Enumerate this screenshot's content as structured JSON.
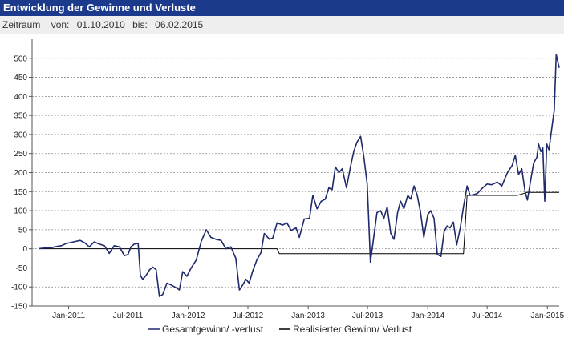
{
  "header": {
    "title": "Entwicklung der Gewinne und Verluste"
  },
  "range": {
    "label": "Zeitraum",
    "from_label": "von:",
    "from_value": "01.10.2010",
    "to_label": "bis:",
    "to_value": "06.02.2015"
  },
  "chart_data": {
    "type": "line",
    "title": "",
    "xlabel": "",
    "ylabel": "",
    "ylim": [
      -150,
      550
    ],
    "y_ticks": [
      -150,
      -100,
      -50,
      0,
      50,
      100,
      150,
      200,
      250,
      300,
      350,
      400,
      450,
      500
    ],
    "x_ticks": [
      {
        "label": "Jan-2011",
        "date": "2011-01-01"
      },
      {
        "label": "Jul-2011",
        "date": "2011-07-01"
      },
      {
        "label": "Jan-2012",
        "date": "2012-01-01"
      },
      {
        "label": "Jul-2012",
        "date": "2012-07-01"
      },
      {
        "label": "Jan-2013",
        "date": "2013-01-01"
      },
      {
        "label": "Jul-2013",
        "date": "2013-07-01"
      },
      {
        "label": "Jan-2014",
        "date": "2014-01-01"
      },
      {
        "label": "Jul-2014",
        "date": "2014-07-01"
      },
      {
        "label": "Jan-2015",
        "date": "2015-01-01"
      }
    ],
    "xlim": [
      "2010-10-01",
      "2015-02-06"
    ],
    "grid": "horizontal-dashed",
    "legend_position": "bottom-center",
    "series": [
      {
        "name": "Gesamtgewinn/ -verlust",
        "color": "#1f2a6b",
        "points": [
          [
            "2010-10-01",
            0
          ],
          [
            "2010-10-20",
            2
          ],
          [
            "2010-11-10",
            3
          ],
          [
            "2010-11-25",
            6
          ],
          [
            "2010-12-10",
            8
          ],
          [
            "2010-12-25",
            14
          ],
          [
            "2011-01-15",
            18
          ],
          [
            "2011-02-05",
            22
          ],
          [
            "2011-02-20",
            15
          ],
          [
            "2011-03-05",
            5
          ],
          [
            "2011-03-20",
            18
          ],
          [
            "2011-04-05",
            12
          ],
          [
            "2011-04-20",
            8
          ],
          [
            "2011-05-05",
            -12
          ],
          [
            "2011-05-20",
            8
          ],
          [
            "2011-06-05",
            5
          ],
          [
            "2011-06-20",
            -18
          ],
          [
            "2011-07-01",
            -15
          ],
          [
            "2011-07-10",
            5
          ],
          [
            "2011-07-20",
            12
          ],
          [
            "2011-08-01",
            14
          ],
          [
            "2011-08-08",
            -70
          ],
          [
            "2011-08-15",
            -80
          ],
          [
            "2011-08-25",
            -70
          ],
          [
            "2011-09-05",
            -55
          ],
          [
            "2011-09-15",
            -48
          ],
          [
            "2011-09-25",
            -55
          ],
          [
            "2011-10-05",
            -125
          ],
          [
            "2011-10-15",
            -120
          ],
          [
            "2011-10-28",
            -90
          ],
          [
            "2011-11-10",
            -95
          ],
          [
            "2011-11-25",
            -102
          ],
          [
            "2011-12-05",
            -108
          ],
          [
            "2011-12-15",
            -60
          ],
          [
            "2011-12-28",
            -72
          ],
          [
            "2012-01-10",
            -50
          ],
          [
            "2012-01-25",
            -30
          ],
          [
            "2012-02-10",
            20
          ],
          [
            "2012-02-25",
            50
          ],
          [
            "2012-03-10",
            30
          ],
          [
            "2012-03-25",
            25
          ],
          [
            "2012-04-10",
            22
          ],
          [
            "2012-04-25",
            0
          ],
          [
            "2012-05-10",
            5
          ],
          [
            "2012-05-25",
            -25
          ],
          [
            "2012-06-05",
            -108
          ],
          [
            "2012-06-15",
            -95
          ],
          [
            "2012-06-25",
            -80
          ],
          [
            "2012-07-05",
            -90
          ],
          [
            "2012-07-15",
            -60
          ],
          [
            "2012-07-28",
            -30
          ],
          [
            "2012-08-10",
            -10
          ],
          [
            "2012-08-20",
            40
          ],
          [
            "2012-09-05",
            25
          ],
          [
            "2012-09-15",
            28
          ],
          [
            "2012-09-28",
            68
          ],
          [
            "2012-10-15",
            62
          ],
          [
            "2012-10-28",
            68
          ],
          [
            "2012-11-10",
            48
          ],
          [
            "2012-11-25",
            55
          ],
          [
            "2012-12-05",
            30
          ],
          [
            "2012-12-20",
            78
          ],
          [
            "2013-01-05",
            80
          ],
          [
            "2013-01-15",
            140
          ],
          [
            "2013-01-28",
            105
          ],
          [
            "2013-02-10",
            125
          ],
          [
            "2013-02-22",
            130
          ],
          [
            "2013-03-05",
            160
          ],
          [
            "2013-03-15",
            155
          ],
          [
            "2013-03-25",
            215
          ],
          [
            "2013-04-05",
            200
          ],
          [
            "2013-04-15",
            210
          ],
          [
            "2013-04-28",
            160
          ],
          [
            "2013-05-10",
            215
          ],
          [
            "2013-05-20",
            255
          ],
          [
            "2013-05-30",
            280
          ],
          [
            "2013-06-10",
            295
          ],
          [
            "2013-06-20",
            240
          ],
          [
            "2013-06-30",
            170
          ],
          [
            "2013-07-05",
            70
          ],
          [
            "2013-07-10",
            -35
          ],
          [
            "2013-07-20",
            30
          ],
          [
            "2013-07-30",
            95
          ],
          [
            "2013-08-10",
            100
          ],
          [
            "2013-08-20",
            80
          ],
          [
            "2013-08-30",
            110
          ],
          [
            "2013-09-10",
            40
          ],
          [
            "2013-09-20",
            25
          ],
          [
            "2013-10-01",
            95
          ],
          [
            "2013-10-10",
            125
          ],
          [
            "2013-10-20",
            105
          ],
          [
            "2013-11-01",
            140
          ],
          [
            "2013-11-10",
            130
          ],
          [
            "2013-11-20",
            165
          ],
          [
            "2013-11-30",
            140
          ],
          [
            "2013-12-10",
            95
          ],
          [
            "2013-12-20",
            30
          ],
          [
            "2014-01-01",
            90
          ],
          [
            "2014-01-10",
            100
          ],
          [
            "2014-01-20",
            80
          ],
          [
            "2014-01-30",
            -15
          ],
          [
            "2014-02-10",
            -20
          ],
          [
            "2014-02-20",
            45
          ],
          [
            "2014-03-01",
            60
          ],
          [
            "2014-03-10",
            55
          ],
          [
            "2014-03-20",
            70
          ],
          [
            "2014-03-30",
            10
          ],
          [
            "2014-04-10",
            55
          ],
          [
            "2014-04-20",
            110
          ],
          [
            "2014-05-01",
            165
          ],
          [
            "2014-05-10",
            140
          ],
          [
            "2014-05-20",
            142
          ],
          [
            "2014-06-01",
            145
          ],
          [
            "2014-06-15",
            158
          ],
          [
            "2014-07-01",
            170
          ],
          [
            "2014-07-15",
            168
          ],
          [
            "2014-08-01",
            175
          ],
          [
            "2014-08-15",
            165
          ],
          [
            "2014-09-01",
            200
          ],
          [
            "2014-09-15",
            218
          ],
          [
            "2014-09-25",
            245
          ],
          [
            "2014-10-05",
            195
          ],
          [
            "2014-10-15",
            210
          ],
          [
            "2014-10-25",
            150
          ],
          [
            "2014-11-01",
            128
          ],
          [
            "2014-11-10",
            175
          ],
          [
            "2014-11-20",
            225
          ],
          [
            "2014-11-30",
            240
          ],
          [
            "2014-12-05",
            275
          ],
          [
            "2014-12-12",
            255
          ],
          [
            "2014-12-18",
            265
          ],
          [
            "2014-12-24",
            125
          ],
          [
            "2014-12-30",
            275
          ],
          [
            "2015-01-06",
            260
          ],
          [
            "2015-01-15",
            320
          ],
          [
            "2015-01-22",
            365
          ],
          [
            "2015-01-28",
            510
          ],
          [
            "2015-02-06",
            475
          ]
        ]
      },
      {
        "name": "Realisierter Gewinn/ Verlust",
        "color": "#000000",
        "points": [
          [
            "2010-10-01",
            0
          ],
          [
            "2012-09-28",
            0
          ],
          [
            "2012-10-05",
            -13
          ],
          [
            "2014-03-15",
            -13
          ],
          [
            "2014-03-25",
            -13
          ],
          [
            "2014-04-20",
            -13
          ],
          [
            "2014-05-01",
            140
          ],
          [
            "2014-07-01",
            140
          ],
          [
            "2014-07-05",
            140
          ],
          [
            "2014-10-01",
            140
          ],
          [
            "2014-11-01",
            148
          ],
          [
            "2015-02-06",
            148
          ]
        ]
      }
    ]
  }
}
